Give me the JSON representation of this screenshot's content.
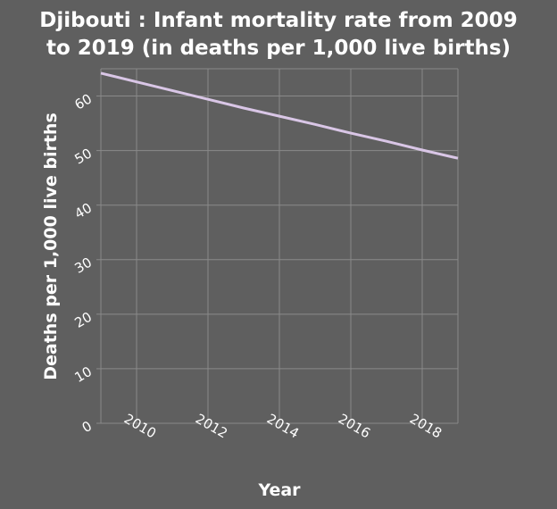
{
  "chart_data": {
    "type": "line",
    "title_line1": "Djibouti : Infant mortality rate from 2009",
    "title_line2": "to 2019 (in deaths per 1,000 live births)",
    "xlabel": "Year",
    "ylabel": "Deaths per 1,000 live births",
    "xlim": [
      2009,
      2019
    ],
    "ylim": [
      0,
      65
    ],
    "xticks": [
      2010,
      2012,
      2014,
      2016,
      2018
    ],
    "yticks": [
      0,
      10,
      20,
      30,
      40,
      50,
      60
    ],
    "grid": true,
    "series": [
      {
        "name": "Infant mortality rate",
        "color": "#d9c6e6",
        "x": [
          2009,
          2010,
          2011,
          2012,
          2013,
          2014,
          2015,
          2016,
          2017,
          2018,
          2019
        ],
        "values": [
          64.2,
          62.6,
          61.0,
          59.4,
          57.8,
          56.3,
          54.8,
          53.2,
          51.7,
          50.1,
          48.6
        ]
      }
    ]
  },
  "colors": {
    "background": "#5f5f5f",
    "grid": "#8a8a8a",
    "text": "#ffffff"
  }
}
